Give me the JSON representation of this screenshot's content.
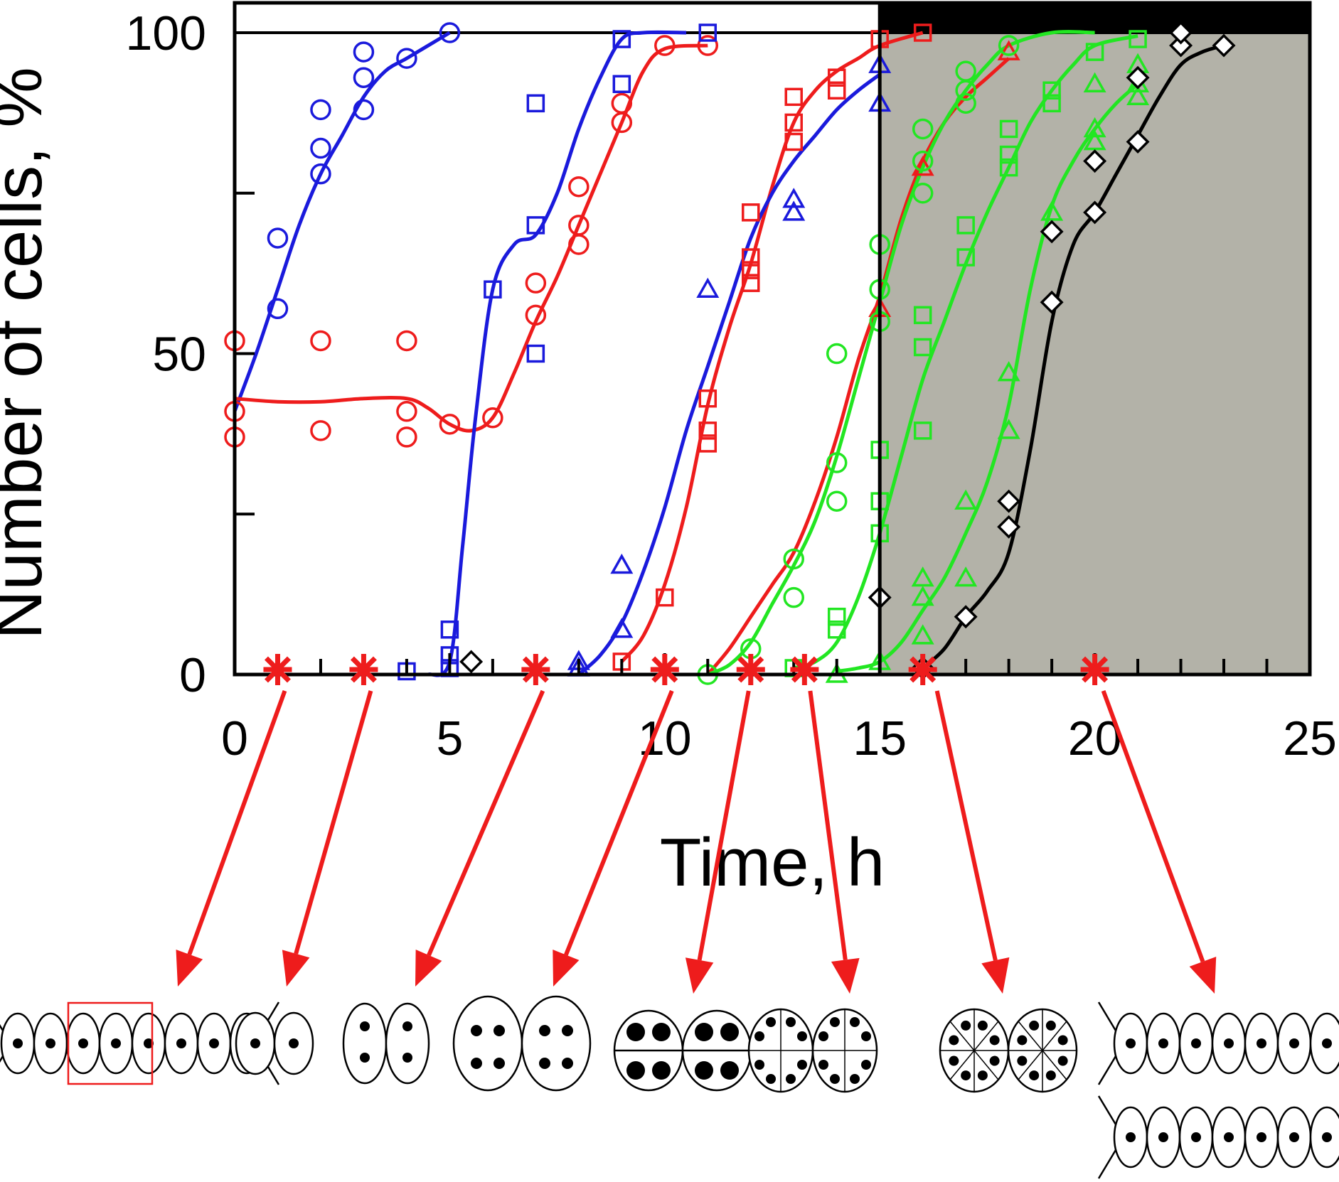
{
  "chart_data": {
    "type": "scatter",
    "title": "",
    "xlabel": "Time, h",
    "ylabel": "Number of cells, %",
    "xlim": [
      0,
      25
    ],
    "ylim": [
      0,
      100
    ],
    "x_ticks": [
      0,
      5,
      10,
      15,
      20,
      25
    ],
    "x_tick_labels": [
      "0",
      "5",
      "10",
      "15",
      "20",
      "25"
    ],
    "y_ticks": [
      0,
      50,
      100
    ],
    "y_tick_labels": [
      "0",
      "50",
      "100"
    ],
    "grid": false,
    "light_dark": {
      "light_until": 15,
      "dark_from": 15,
      "dark_until": 25,
      "reference_line_y": 100
    },
    "colors": {
      "blue": "#1a1adc",
      "red": "#ee1c1c",
      "green": "#22e622",
      "black": "#000000",
      "dark_shade": "#b3b2a8",
      "star": "#ee1c1c"
    },
    "series": [
      {
        "color": "blue",
        "marker": "circle",
        "points": [
          [
            1,
            57
          ],
          [
            1,
            68
          ],
          [
            2,
            78
          ],
          [
            2,
            82
          ],
          [
            2,
            88
          ],
          [
            3,
            88
          ],
          [
            3,
            93
          ],
          [
            3,
            97
          ],
          [
            4,
            96
          ],
          [
            5,
            100
          ]
        ],
        "curve": [
          [
            0,
            41
          ],
          [
            0.5,
            50
          ],
          [
            1,
            60
          ],
          [
            1.5,
            70
          ],
          [
            2,
            78
          ],
          [
            2.5,
            84
          ],
          [
            3,
            90
          ],
          [
            3.5,
            94
          ],
          [
            4,
            96
          ],
          [
            4.5,
            98
          ],
          [
            5,
            100
          ]
        ]
      },
      {
        "color": "red",
        "marker": "circle",
        "points": [
          [
            0,
            52
          ],
          [
            0,
            41
          ],
          [
            0,
            37
          ],
          [
            2,
            52
          ],
          [
            2,
            38
          ],
          [
            4,
            52
          ],
          [
            4,
            41
          ],
          [
            4,
            37
          ],
          [
            5,
            39
          ],
          [
            6,
            40
          ],
          [
            7,
            56
          ],
          [
            7,
            61
          ],
          [
            8,
            67
          ],
          [
            8,
            70
          ],
          [
            8,
            76
          ],
          [
            9,
            86
          ],
          [
            9,
            89
          ],
          [
            10,
            98
          ],
          [
            11,
            98
          ]
        ],
        "curve": [
          [
            0,
            43
          ],
          [
            1,
            42.5
          ],
          [
            2,
            42.5
          ],
          [
            3,
            43
          ],
          [
            4,
            43
          ],
          [
            4.5,
            41.5
          ],
          [
            5,
            39
          ],
          [
            5.5,
            38
          ],
          [
            6,
            40
          ],
          [
            6.5,
            47
          ],
          [
            7,
            55
          ],
          [
            7.5,
            62
          ],
          [
            8,
            70
          ],
          [
            8.5,
            78
          ],
          [
            9,
            86
          ],
          [
            9.5,
            94
          ],
          [
            10,
            97.5
          ],
          [
            11,
            98
          ]
        ]
      },
      {
        "color": "blue",
        "marker": "square",
        "points": [
          [
            4,
            0.5
          ],
          [
            5,
            1
          ],
          [
            5,
            3
          ],
          [
            5,
            7
          ],
          [
            6,
            60
          ],
          [
            7,
            70
          ],
          [
            7,
            50
          ],
          [
            7,
            89
          ],
          [
            9,
            92
          ],
          [
            9,
            99
          ],
          [
            11,
            100
          ]
        ],
        "curve": [
          [
            4.5,
            0
          ],
          [
            5,
            2
          ],
          [
            5.3,
            20
          ],
          [
            5.6,
            40
          ],
          [
            6,
            60
          ],
          [
            6.5,
            67
          ],
          [
            7,
            68.5
          ],
          [
            7.5,
            75
          ],
          [
            8,
            85
          ],
          [
            8.5,
            93
          ],
          [
            9,
            99
          ],
          [
            9.5,
            100
          ],
          [
            10.5,
            100
          ]
        ]
      },
      {
        "color": "red",
        "marker": "square",
        "points": [
          [
            9,
            2
          ],
          [
            10,
            12
          ],
          [
            11,
            36
          ],
          [
            11,
            38
          ],
          [
            11,
            43
          ],
          [
            12,
            61
          ],
          [
            12,
            63
          ],
          [
            12,
            65
          ],
          [
            12,
            72
          ],
          [
            13,
            83
          ],
          [
            13,
            86
          ],
          [
            13,
            90
          ],
          [
            14,
            91
          ],
          [
            14,
            93
          ],
          [
            15,
            99
          ],
          [
            16,
            100
          ]
        ],
        "curve": [
          [
            9,
            2
          ],
          [
            9.5,
            6
          ],
          [
            10,
            14
          ],
          [
            10.5,
            26
          ],
          [
            11,
            42
          ],
          [
            11.5,
            54
          ],
          [
            12,
            64
          ],
          [
            12.5,
            76
          ],
          [
            13,
            86
          ],
          [
            13.5,
            91
          ],
          [
            14,
            94
          ],
          [
            14.5,
            96
          ],
          [
            15,
            98
          ],
          [
            16,
            100
          ]
        ]
      },
      {
        "color": "blue",
        "marker": "triangle",
        "points": [
          [
            8,
            1
          ],
          [
            8,
            2
          ],
          [
            9,
            7
          ],
          [
            9,
            17
          ],
          [
            11,
            60
          ],
          [
            13,
            72
          ],
          [
            13,
            74
          ],
          [
            15,
            89
          ],
          [
            15,
            95
          ]
        ],
        "curve": [
          [
            8,
            0
          ],
          [
            8.5,
            3
          ],
          [
            9,
            8
          ],
          [
            9.5,
            16
          ],
          [
            10,
            26
          ],
          [
            10.5,
            38
          ],
          [
            11,
            48
          ],
          [
            11.5,
            58
          ],
          [
            12,
            68
          ],
          [
            12.5,
            75
          ],
          [
            13,
            80
          ],
          [
            13.5,
            84
          ],
          [
            14,
            88
          ],
          [
            14.5,
            91
          ],
          [
            15,
            93.5
          ]
        ]
      },
      {
        "color": "red",
        "marker": "triangle",
        "points": [
          [
            15,
            57
          ],
          [
            16,
            79
          ],
          [
            18,
            97
          ]
        ],
        "curve": [
          [
            11,
            0
          ],
          [
            11.5,
            4
          ],
          [
            12,
            9
          ],
          [
            12.5,
            14
          ],
          [
            13,
            19
          ],
          [
            13.5,
            27
          ],
          [
            14,
            37
          ],
          [
            14.5,
            49
          ],
          [
            15,
            59
          ],
          [
            15.5,
            71
          ],
          [
            16,
            80
          ],
          [
            16.5,
            86
          ],
          [
            17,
            90
          ],
          [
            17.5,
            93
          ],
          [
            18,
            96
          ]
        ]
      },
      {
        "color": "green",
        "marker": "circle",
        "points": [
          [
            11,
            0
          ],
          [
            12,
            4
          ],
          [
            13,
            12
          ],
          [
            13,
            18
          ],
          [
            14,
            27
          ],
          [
            14,
            33
          ],
          [
            14,
            50
          ],
          [
            15,
            55
          ],
          [
            15,
            60
          ],
          [
            15,
            67
          ],
          [
            16,
            75
          ],
          [
            16,
            80
          ],
          [
            16,
            85
          ],
          [
            17,
            89
          ],
          [
            17,
            91
          ],
          [
            17,
            94
          ],
          [
            18,
            98
          ]
        ],
        "curve": [
          [
            11,
            0
          ],
          [
            11.5,
            1.5
          ],
          [
            12,
            5
          ],
          [
            12.5,
            11
          ],
          [
            13,
            17
          ],
          [
            13.5,
            24
          ],
          [
            14,
            34
          ],
          [
            14.5,
            46
          ],
          [
            15,
            58
          ],
          [
            15.5,
            70
          ],
          [
            16,
            79
          ],
          [
            16.5,
            86
          ],
          [
            17,
            91
          ],
          [
            17.5,
            95
          ],
          [
            18,
            98
          ],
          [
            19,
            100
          ],
          [
            20,
            100
          ]
        ]
      },
      {
        "color": "green",
        "marker": "square",
        "points": [
          [
            13,
            1
          ],
          [
            14,
            7
          ],
          [
            14,
            9
          ],
          [
            15,
            22
          ],
          [
            15,
            27
          ],
          [
            15,
            35
          ],
          [
            16,
            38
          ],
          [
            16,
            51
          ],
          [
            16,
            56
          ],
          [
            17,
            65
          ],
          [
            17,
            70
          ],
          [
            18,
            79
          ],
          [
            18,
            81
          ],
          [
            18,
            85
          ],
          [
            19,
            89
          ],
          [
            19,
            91
          ],
          [
            20,
            97
          ],
          [
            21,
            99
          ]
        ],
        "curve": [
          [
            13,
            1
          ],
          [
            13.5,
            2
          ],
          [
            14,
            5
          ],
          [
            14.5,
            12
          ],
          [
            15,
            22
          ],
          [
            15.5,
            34
          ],
          [
            16,
            46
          ],
          [
            16.5,
            55
          ],
          [
            17,
            64
          ],
          [
            17.5,
            72
          ],
          [
            18,
            79
          ],
          [
            18.5,
            86
          ],
          [
            19,
            91
          ],
          [
            19.5,
            95
          ],
          [
            20,
            98
          ],
          [
            21,
            99.5
          ]
        ]
      },
      {
        "color": "green",
        "marker": "triangle",
        "points": [
          [
            14,
            0
          ],
          [
            15,
            2
          ],
          [
            16,
            6
          ],
          [
            16,
            12
          ],
          [
            16,
            15
          ],
          [
            17,
            15
          ],
          [
            17,
            27
          ],
          [
            18,
            38
          ],
          [
            18,
            47
          ],
          [
            19,
            72
          ],
          [
            20,
            83
          ],
          [
            20,
            85
          ],
          [
            20,
            92
          ],
          [
            21,
            90
          ],
          [
            21,
            92
          ],
          [
            21,
            95
          ]
        ],
        "curve": [
          [
            14,
            0.5
          ],
          [
            14.5,
            1
          ],
          [
            15,
            2
          ],
          [
            15.5,
            5
          ],
          [
            16,
            10
          ],
          [
            16.5,
            15
          ],
          [
            17,
            22
          ],
          [
            17.5,
            30
          ],
          [
            18,
            42
          ],
          [
            18.5,
            60
          ],
          [
            19,
            73
          ],
          [
            19.5,
            80
          ],
          [
            20,
            85
          ],
          [
            20.5,
            89
          ],
          [
            21,
            92
          ]
        ]
      },
      {
        "color": "black",
        "marker": "diamond",
        "points": [
          [
            5.5,
            2
          ],
          [
            15,
            12
          ],
          [
            16,
            1
          ],
          [
            17,
            9
          ],
          [
            18,
            23
          ],
          [
            18,
            27
          ],
          [
            19,
            58
          ],
          [
            19,
            69
          ],
          [
            20,
            72
          ],
          [
            20,
            80
          ],
          [
            21,
            83
          ],
          [
            21,
            93
          ],
          [
            22,
            98
          ],
          [
            22,
            100
          ],
          [
            23,
            98
          ]
        ],
        "curve": [
          [
            16,
            1
          ],
          [
            16.5,
            4
          ],
          [
            17,
            9
          ],
          [
            17.5,
            13
          ],
          [
            18,
            19
          ],
          [
            18.5,
            35
          ],
          [
            19,
            55
          ],
          [
            19.5,
            67
          ],
          [
            20,
            72
          ],
          [
            20.5,
            78
          ],
          [
            21,
            84
          ],
          [
            21.5,
            90
          ],
          [
            22,
            95
          ],
          [
            22.5,
            97
          ],
          [
            23,
            98
          ]
        ]
      }
    ],
    "stage_markers": {
      "x": [
        1,
        3,
        7,
        10,
        12,
        13.25,
        16,
        20
      ],
      "marker": "asterisk",
      "stages": [
        {
          "glyph": "chain-of-cells-one-boxed"
        },
        {
          "glyph": "pair-cells-1-nucleus"
        },
        {
          "glyph": "pair-cells-2-nuclei"
        },
        {
          "glyph": "pair-cells-4-nuclei"
        },
        {
          "glyph": "pair-cells-4-nuclei-one-division"
        },
        {
          "glyph": "pair-cells-8-nuclei"
        },
        {
          "glyph": "pair-cells-16-nuclei"
        },
        {
          "glyph": "two-daughter-chains"
        }
      ]
    }
  }
}
